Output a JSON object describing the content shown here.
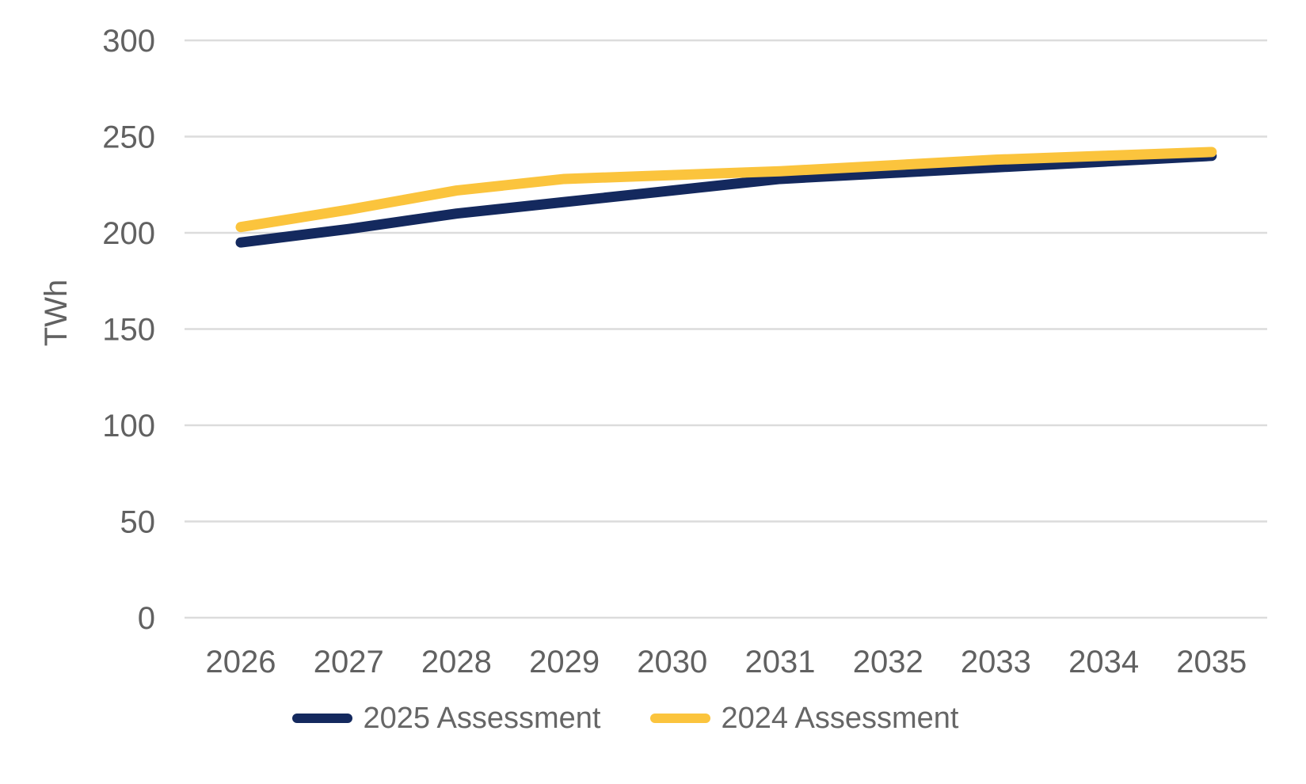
{
  "chart_data": {
    "type": "line",
    "title": "",
    "xlabel": "",
    "ylabel": "TWh",
    "x": [
      2026,
      2027,
      2028,
      2029,
      2030,
      2031,
      2032,
      2033,
      2034,
      2035
    ],
    "series": [
      {
        "name": "2025 Assessment",
        "color": "#14295E",
        "values": [
          195,
          202,
          210,
          216,
          222,
          228,
          231,
          234,
          237,
          240
        ]
      },
      {
        "name": "2024 Assessment",
        "color": "#FBC43D",
        "values": [
          203,
          212,
          222,
          228,
          230,
          232,
          235,
          238,
          240,
          242
        ]
      }
    ],
    "ylim": [
      0,
      300
    ],
    "ytick_step": 50,
    "yticks": [
      0,
      50,
      100,
      150,
      200,
      250,
      300
    ],
    "grid": "horizontal",
    "legend_position": "bottom",
    "axis_text_color": "#616161",
    "legend_text_color": "#666666",
    "grid_color": "#DCDCDC",
    "background": "#FFFFFF"
  }
}
